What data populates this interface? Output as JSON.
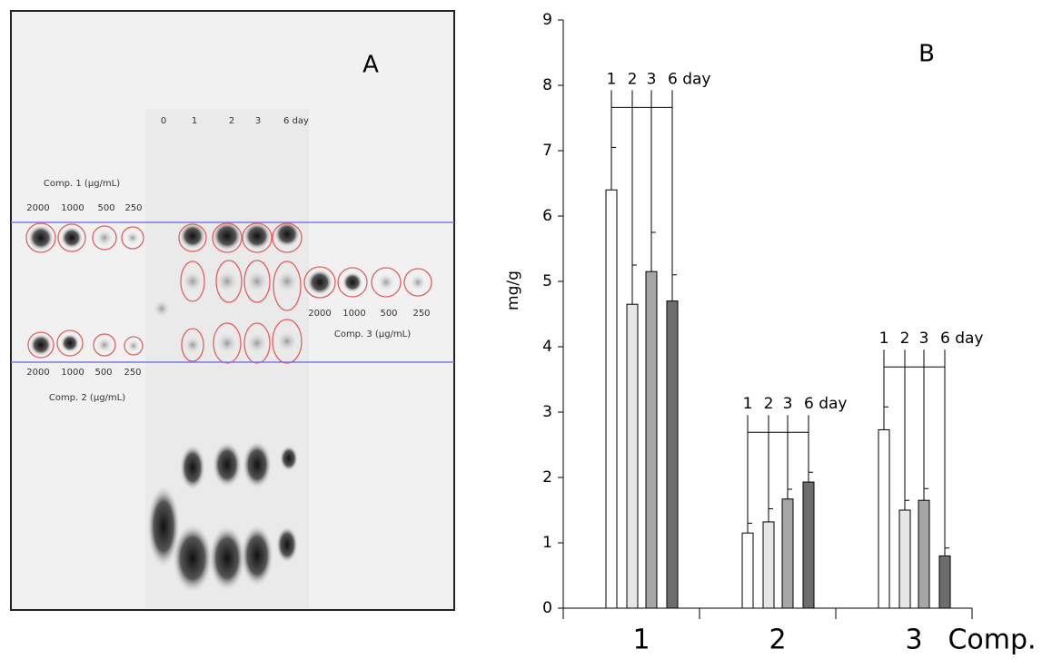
{
  "panel_a": {
    "label": "A",
    "lanes": [
      "0",
      "1",
      "2",
      "3",
      "6 day"
    ],
    "comp1": {
      "title": "Comp. 1 (μg/mL)",
      "concentrations": [
        "2000",
        "1000",
        "500",
        "250"
      ]
    },
    "comp2": {
      "title": "Comp. 2 (μg/mL)",
      "concentrations": [
        "2000",
        "1000",
        "500",
        "250"
      ]
    },
    "comp3": {
      "title": "Comp. 3 (μg/mL)",
      "concentrations": [
        "2000",
        "1000",
        "500",
        "250"
      ]
    }
  },
  "chart_data": {
    "type": "bar",
    "panel_label": "B",
    "y_label": "mg/g",
    "x_label": "Comp.",
    "categories": [
      "1",
      "2",
      "3"
    ],
    "series": [
      {
        "name": "1",
        "color": "#ffffff",
        "values": [
          6.4,
          1.15,
          2.73
        ],
        "errors": [
          0.65,
          0.15,
          0.35
        ]
      },
      {
        "name": "2",
        "color": "#e6e6e6",
        "values": [
          4.65,
          1.32,
          1.5
        ],
        "errors": [
          0.6,
          0.2,
          0.15
        ]
      },
      {
        "name": "3",
        "color": "#a6a6a6",
        "values": [
          5.15,
          1.67,
          1.65
        ],
        "errors": [
          0.6,
          0.15,
          0.18
        ]
      },
      {
        "name": "6 day",
        "color": "#6d6d6d",
        "values": [
          4.7,
          1.93,
          0.8
        ],
        "errors": [
          0.4,
          0.15,
          0.12
        ]
      }
    ],
    "ylim": [
      0,
      9
    ],
    "yticks": [
      0,
      1,
      2,
      3,
      4,
      5,
      6,
      7,
      8,
      9
    ]
  }
}
